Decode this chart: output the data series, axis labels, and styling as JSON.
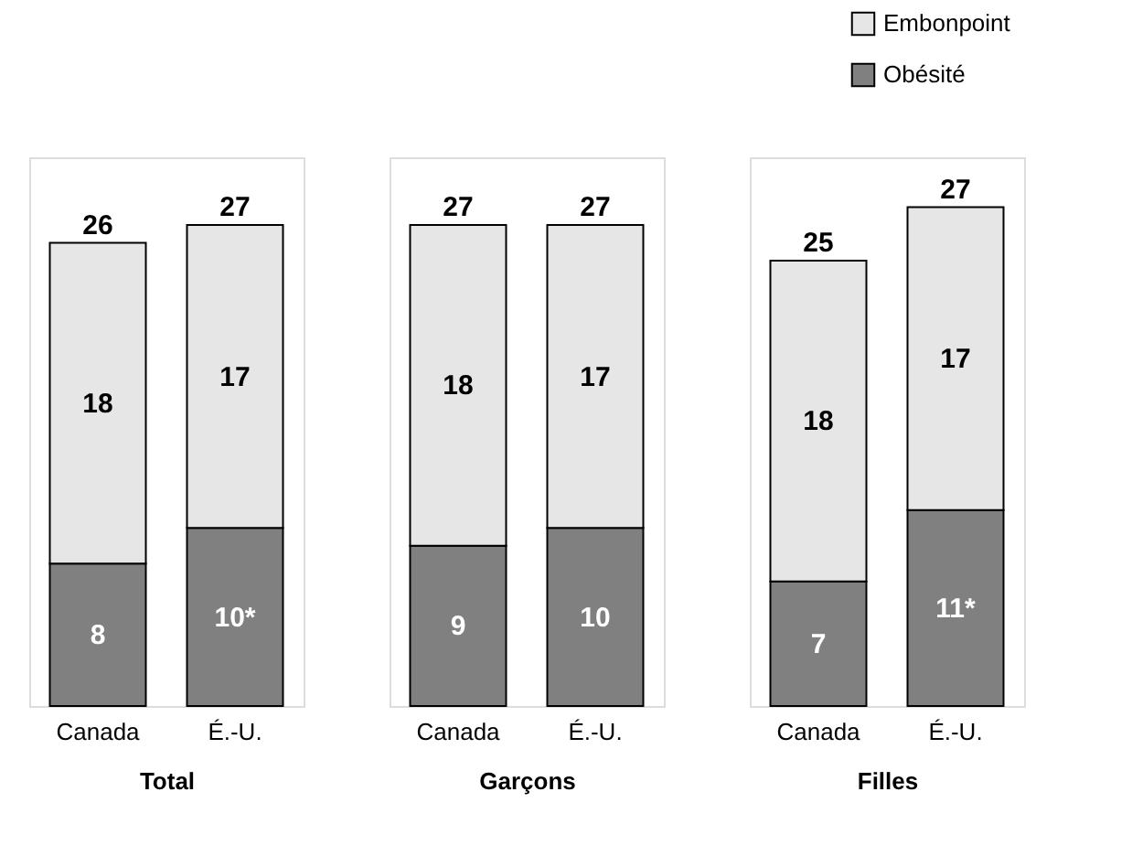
{
  "chart_data": [
    {
      "type": "bar",
      "stacked": true,
      "xlabel": "Total",
      "categories": [
        "Canada",
        "É.-U."
      ],
      "data_labels": true,
      "totals": [
        "26",
        "27"
      ],
      "series": [
        {
          "color": "#808080",
          "values": [
            8,
            10
          ],
          "value_labels": [
            "8",
            "10*"
          ]
        },
        {
          "color": "#e6e6e6",
          "values": [
            18,
            17
          ]
        }
      ]
    },
    {
      "type": "bar",
      "stacked": true,
      "xlabel": "Garçons",
      "categories": [
        "Canada",
        "É.-U."
      ],
      "data_labels": true,
      "totals": [
        "27",
        "27"
      ],
      "series": [
        {
          "color": "#808080",
          "values": [
            9,
            10
          ]
        },
        {
          "color": "#e6e6e6",
          "values": [
            18,
            17
          ]
        }
      ]
    },
    {
      "type": "bar",
      "stacked": true,
      "xlabel": "Filles",
      "categories": [
        "Canada",
        "É.-U."
      ],
      "data_labels": true,
      "totals": [
        "25",
        "27"
      ],
      "legend": "top right",
      "series": [
        {
          "name": "Obésité",
          "color": "#808080",
          "values": [
            7,
            11
          ],
          "value_labels": [
            "7",
            "11*"
          ]
        },
        {
          "name": "Embonpoint",
          "color": "#e6e6e6",
          "values": [
            18,
            17
          ]
        }
      ]
    }
  ]
}
